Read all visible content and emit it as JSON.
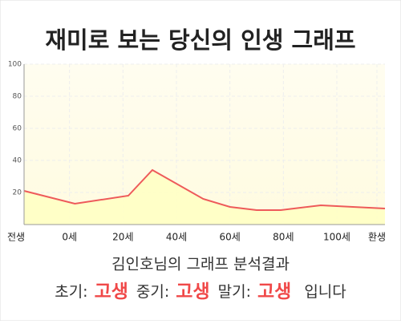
{
  "chart_data": {
    "type": "line",
    "title": "재미로 보는 당신의 인생 그래프",
    "x": [
      -17,
      2,
      22,
      31,
      50,
      60,
      70,
      79,
      94,
      118
    ],
    "series": [
      {
        "color": "#ee5a5a",
        "values": [
          21,
          13,
          18,
          34,
          16,
          11,
          9,
          9,
          12,
          10
        ]
      }
    ],
    "xlim": [
      -17,
      118
    ],
    "xticks": [
      {
        "value": -20,
        "label": "전생"
      },
      {
        "value": 0,
        "label": "0세"
      },
      {
        "value": 20,
        "label": "20세"
      },
      {
        "value": 40,
        "label": "40세"
      },
      {
        "value": 60,
        "label": "60세"
      },
      {
        "value": 80,
        "label": "80세"
      },
      {
        "value": 100,
        "label": "100세"
      },
      {
        "value": 115,
        "label": "환생"
      }
    ],
    "ylim": [
      0,
      100
    ],
    "yticks": [
      20,
      40,
      60,
      80,
      100
    ],
    "grid": true
  },
  "summary": {
    "title": "김인호님의 그래프 분석결과",
    "parts": [
      {
        "label": "초기:",
        "value": "고생"
      },
      {
        "label": "중기:",
        "value": "고생"
      },
      {
        "label": "말기:",
        "value": "고생"
      }
    ],
    "ending": "입니다"
  }
}
